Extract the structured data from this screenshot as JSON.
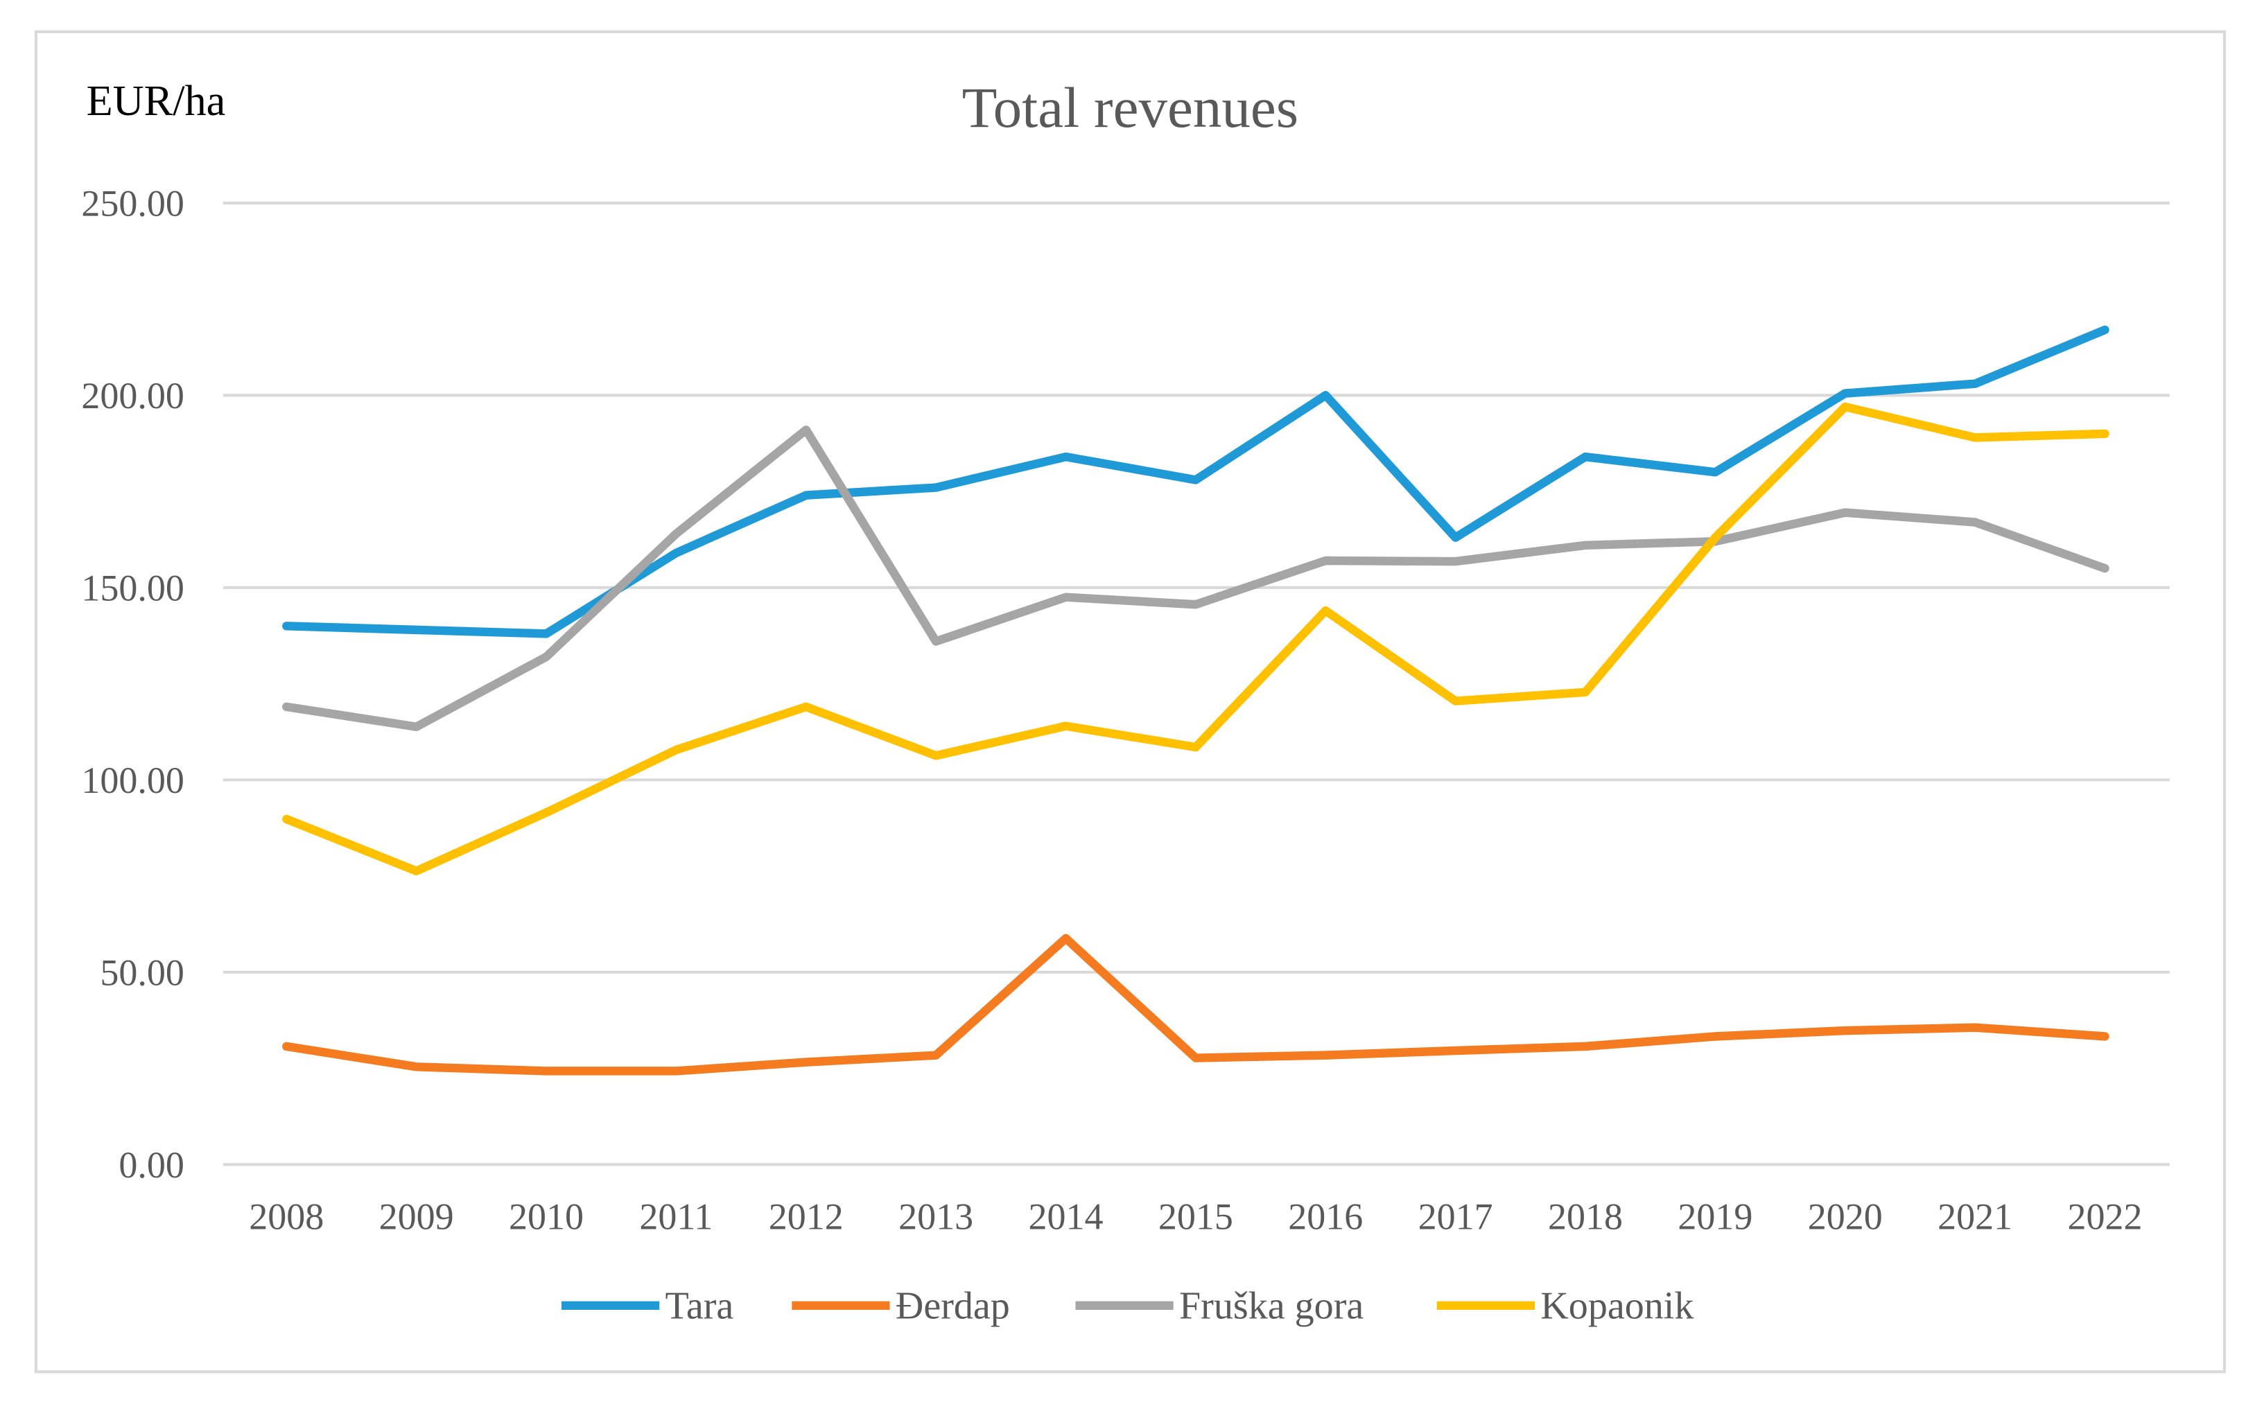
{
  "chart_data": {
    "type": "line",
    "title": "Total revenues",
    "ylabel": "EUR/ha",
    "xlabel": "",
    "ylim": [
      0,
      250
    ],
    "yticks": [
      "0.00",
      "50.00",
      "100.00",
      "150.00",
      "200.00",
      "250.00"
    ],
    "ytick_values": [
      0,
      50,
      100,
      150,
      200,
      250
    ],
    "grid": true,
    "legend_position": "bottom",
    "categories": [
      "2008",
      "2009",
      "2010",
      "2011",
      "2012",
      "2013",
      "2014",
      "2015",
      "2016",
      "2017",
      "2018",
      "2019",
      "2020",
      "2021",
      "2022"
    ],
    "series": [
      {
        "name": "Tara",
        "color": "#1f9ad6",
        "values": [
          140,
          139,
          138,
          159,
          174,
          176,
          184,
          178,
          200,
          163,
          184,
          180,
          200.5,
          203,
          217
        ]
      },
      {
        "name": "Đerdap",
        "color": "#f47b20",
        "values": [
          30.7,
          25.4,
          24.3,
          24.3,
          26.6,
          28.4,
          58.8,
          27.7,
          28.4,
          29.6,
          30.7,
          33.3,
          34.8,
          35.6,
          33.3
        ]
      },
      {
        "name": "Fruška gora",
        "color": "#a5a5a5",
        "values": [
          119,
          113.8,
          132,
          164,
          191,
          136,
          147.5,
          145.6,
          157,
          156.8,
          161,
          162,
          169.5,
          167,
          155
        ]
      },
      {
        "name": "Kopaonik",
        "color": "#ffc000",
        "values": [
          89.8,
          76.3,
          91.5,
          107.8,
          119,
          106.3,
          114,
          108.5,
          144,
          120.5,
          122.8,
          163,
          197,
          189,
          190
        ]
      }
    ]
  }
}
